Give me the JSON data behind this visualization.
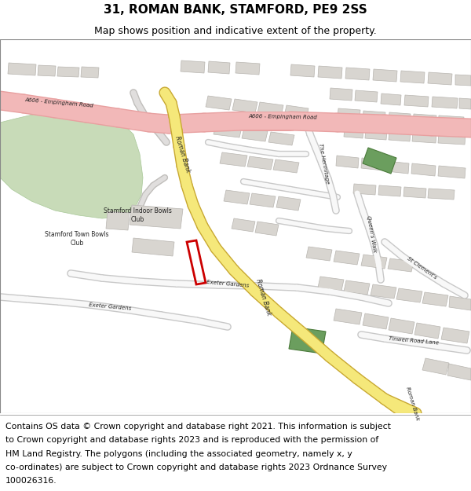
{
  "title_line1": "31, ROMAN BANK, STAMFORD, PE9 2SS",
  "title_line2": "Map shows position and indicative extent of the property.",
  "footer_lines": [
    "Contains OS data © Crown copyright and database right 2021. This information is subject",
    "to Crown copyright and database rights 2023 and is reproduced with the permission of",
    "HM Land Registry. The polygons (including the associated geometry, namely x, y",
    "co-ordinates) are subject to Crown copyright and database rights 2023 Ordnance Survey",
    "100026316."
  ],
  "map_bg": "#f0ede8",
  "road_pink_color": "#f2b8b8",
  "road_pink_edge": "#e8a0a0",
  "road_yellow_color": "#f5e87a",
  "road_yellow_edge": "#c8a832",
  "road_white_color": "#f8f8f8",
  "road_white_edge": "#c8c8c8",
  "road_grey_color": "#e0dedd",
  "road_grey_edge": "#c0bebb",
  "building_fill": "#d8d5d0",
  "building_edge": "#b8b5b0",
  "green_fill": "#c8dbb8",
  "green_building_fill": "#6b9e5e",
  "green_building_edge": "#4a7a3a",
  "plot_color": "#cc0000",
  "title_fontsize": 11,
  "subtitle_fontsize": 9,
  "footer_fontsize": 7.8,
  "label_fontsize": 5.5
}
